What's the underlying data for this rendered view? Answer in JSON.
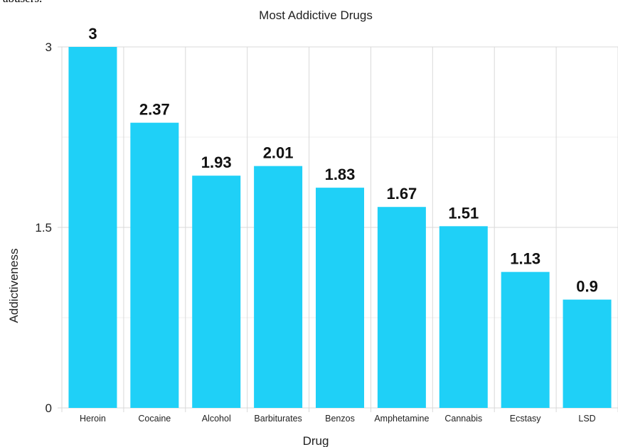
{
  "page_fragment": "abusers.",
  "chart_data": {
    "type": "bar",
    "title": "Most Addictive Drugs",
    "xlabel": "Drug",
    "ylabel": "Addictiveness",
    "categories": [
      "Heroin",
      "Cocaine",
      "Alcohol",
      "Barbiturates",
      "Benzos",
      "Amphetamine",
      "Cannabis",
      "Ecstasy",
      "LSD"
    ],
    "values": [
      3,
      2.37,
      1.93,
      2.01,
      1.83,
      1.67,
      1.51,
      1.13,
      0.9
    ],
    "data_labels": [
      "3",
      "2.37",
      "1.93",
      "2.01",
      "1.83",
      "1.67",
      "1.51",
      "1.13",
      "0.9"
    ],
    "ylim": [
      0,
      3
    ],
    "yticks": [
      0,
      1.5,
      3
    ],
    "ytick_labels": [
      "0",
      "1.5",
      "3"
    ],
    "grid": true,
    "legend": "none",
    "colors": {
      "bar": "#1fd0f7",
      "grid": "#d9d9d9",
      "grid_minor": "#efefef",
      "text": "#222222"
    }
  }
}
